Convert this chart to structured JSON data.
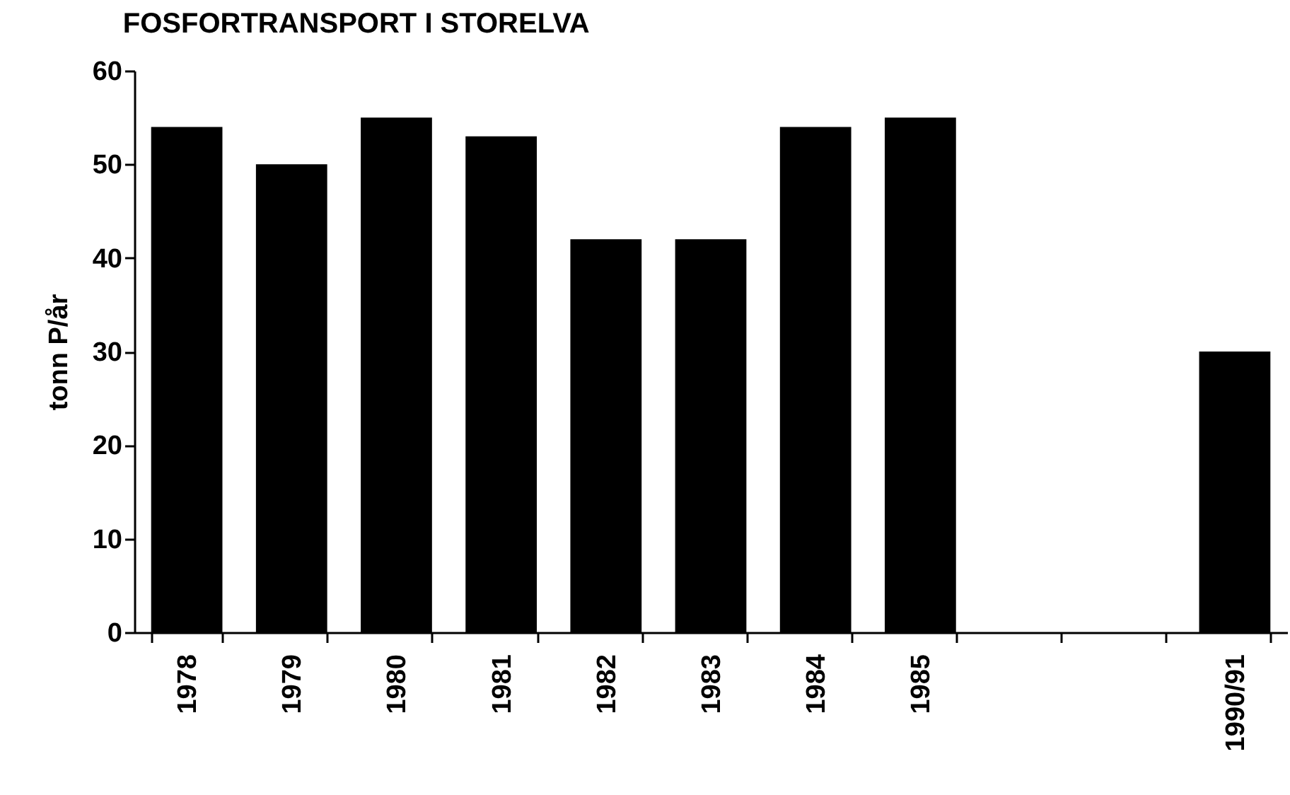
{
  "chart_data": {
    "type": "bar",
    "title": "FOSFORTRANSPORT I STORELVA",
    "ylabel": "tonn P/år",
    "categories": [
      "1978",
      "1979",
      "1980",
      "1981",
      "1982",
      "1983",
      "1984",
      "1985",
      null,
      null,
      "1990/91"
    ],
    "values": [
      54,
      50,
      55,
      53,
      42,
      42,
      54,
      55,
      null,
      null,
      30
    ],
    "color": "#000000",
    "ylim": [
      0,
      60
    ],
    "yticks": [
      0,
      10,
      20,
      30,
      40,
      50,
      60
    ],
    "grid": false
  }
}
